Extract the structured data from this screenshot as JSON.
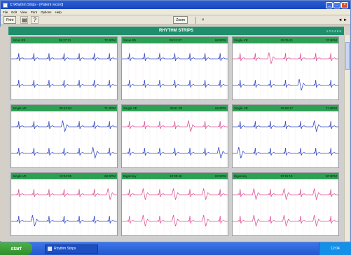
{
  "window": {
    "title": "C:\\Rhythm Strips - [Patient record]"
  },
  "menu": [
    "File",
    "Edit",
    "View",
    "Print",
    "Options",
    "Help"
  ],
  "toolbar": {
    "print_label": "Print",
    "zoom_label": "Zoom",
    "close_symbol": "×",
    "nav_label": "◄ ►"
  },
  "banner": {
    "title": "RHYTHM STRIPS",
    "pager": "1 2 3 4 5 6"
  },
  "colors": {
    "header": "#2ea055",
    "banner": "#1f8f6b",
    "trace_blue": "#3b4ec4",
    "trace_pink": "#e0589a"
  },
  "panels": [
    {
      "label": "Sinus Rh",
      "time": "09:27:21",
      "rate": "72 BPM"
    },
    {
      "label": "Sinus Rh",
      "time": "09:31:07",
      "rate": "68 BPM"
    },
    {
      "label": "Single VE",
      "time": "09:35:41",
      "rate": "70 BPM"
    },
    {
      "label": "Single VE",
      "time": "09:43:04",
      "rate": "71 BPM"
    },
    {
      "label": "Single VE",
      "time": "09:51:30",
      "rate": "69 BPM"
    },
    {
      "label": "Single VE",
      "time": "09:58:17",
      "rate": "74 BPM"
    },
    {
      "label": "Single VE",
      "time": "10:04:05",
      "rate": "68 BPM"
    },
    {
      "label": "Bigeminy",
      "time": "10:09:46",
      "rate": "82 BPM"
    },
    {
      "label": "Bigeminy",
      "time": "10:15:19",
      "rate": "80 BPM"
    }
  ],
  "taskbar": {
    "start_label": "start",
    "task_label": "Rhythm Strips",
    "clock": "12:04"
  }
}
